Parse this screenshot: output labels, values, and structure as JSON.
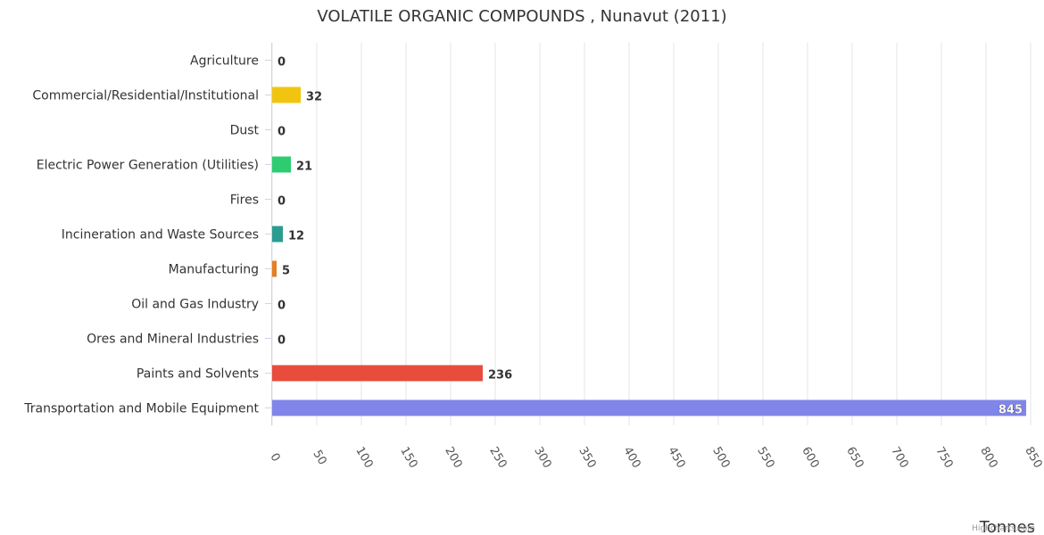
{
  "chart_data": {
    "type": "bar",
    "orientation": "horizontal",
    "title": "VOLATILE ORGANIC COMPOUNDS , Nunavut (2011)",
    "xlabel": "Tonnes",
    "categories": [
      "Agriculture",
      "Commercial/Residential/Institutional",
      "Dust",
      "Electric Power Generation (Utilities)",
      "Fires",
      "Incineration and Waste Sources",
      "Manufacturing",
      "Oil and Gas Industry",
      "Ores and Mineral Industries",
      "Paints and Solvents",
      "Transportation and Mobile Equipment"
    ],
    "values": [
      0,
      32,
      0,
      21,
      0,
      12,
      5,
      0,
      0,
      236,
      845
    ],
    "value_labels": [
      "0",
      "32",
      "0",
      "21",
      "0",
      "12",
      "5",
      "0",
      "0",
      "236",
      "845"
    ],
    "colors": [
      "#7cb5ec",
      "#f1c40f",
      "#2c3e50",
      "#2ecc71",
      "#f39c12",
      "#2a9d8f",
      "#e67e22",
      "#8e44ad",
      "#c0392b",
      "#e74c3c",
      "#8085e9"
    ],
    "xlim": [
      0,
      850
    ],
    "xticks": [
      0,
      50,
      100,
      150,
      200,
      250,
      300,
      350,
      400,
      450,
      500,
      550,
      600,
      650,
      700,
      750,
      800,
      850
    ],
    "xtick_labels": [
      "0",
      "50",
      "100",
      "150",
      "200",
      "250",
      "300",
      "350",
      "400",
      "450",
      "500",
      "550",
      "600",
      "650",
      "700",
      "750",
      "800",
      "850"
    ],
    "grid": true,
    "legend": "none"
  },
  "credits": "Highcharts.com"
}
